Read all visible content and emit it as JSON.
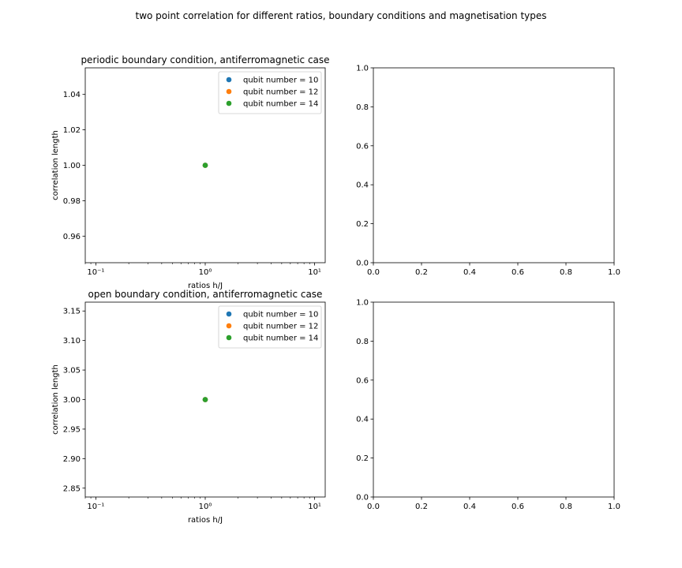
{
  "figure": {
    "suptitle": "two point correlation for different ratios, boundary conditions and magnetisation types"
  },
  "chart_data": [
    {
      "type": "scatter",
      "title": "periodic boundary condition, antiferromagnetic case",
      "xlabel": "ratios h/J",
      "ylabel": "correlation length",
      "xscale": "log",
      "xlim": [
        0.08,
        12.5
      ],
      "ylim": [
        0.945,
        1.055
      ],
      "xticks": [
        0.1,
        1,
        10
      ],
      "xtick_labels": [
        "10⁻¹",
        "10⁰",
        "10¹"
      ],
      "yticks": [
        0.96,
        0.98,
        1.0,
        1.02,
        1.04
      ],
      "ytick_labels": [
        "0.96",
        "0.98",
        "1.00",
        "1.02",
        "1.04"
      ],
      "grid": false,
      "legend": "upper right",
      "series": [
        {
          "name": "qubit number = 10",
          "color": "#1f77b4",
          "x": [
            1
          ],
          "y": [
            1.0
          ]
        },
        {
          "name": "qubit number = 12",
          "color": "#ff7f0e",
          "x": [
            1
          ],
          "y": [
            1.0
          ]
        },
        {
          "name": "qubit number = 14",
          "color": "#2ca02c",
          "x": [
            1
          ],
          "y": [
            1.0
          ]
        }
      ]
    },
    {
      "type": "scatter",
      "title": "",
      "xlabel": "",
      "ylabel": "",
      "xscale": "linear",
      "xlim": [
        0,
        1
      ],
      "ylim": [
        0,
        1
      ],
      "xticks": [
        0,
        0.2,
        0.4,
        0.6,
        0.8,
        1.0
      ],
      "xtick_labels": [
        "0.0",
        "0.2",
        "0.4",
        "0.6",
        "0.8",
        "1.0"
      ],
      "yticks": [
        0,
        0.2,
        0.4,
        0.6,
        0.8,
        1.0
      ],
      "ytick_labels": [
        "0.0",
        "0.2",
        "0.4",
        "0.6",
        "0.8",
        "1.0"
      ],
      "grid": false,
      "series": []
    },
    {
      "type": "scatter",
      "title": "open boundary condition, antiferromagnetic case",
      "xlabel": "ratios h/J",
      "ylabel": "correlation length",
      "xscale": "log",
      "xlim": [
        0.08,
        12.5
      ],
      "ylim": [
        2.835,
        3.165
      ],
      "xticks": [
        0.1,
        1,
        10
      ],
      "xtick_labels": [
        "10⁻¹",
        "10⁰",
        "10¹"
      ],
      "yticks": [
        2.85,
        2.9,
        2.95,
        3.0,
        3.05,
        3.1,
        3.15
      ],
      "ytick_labels": [
        "2.85",
        "2.90",
        "2.95",
        "3.00",
        "3.05",
        "3.10",
        "3.15"
      ],
      "grid": false,
      "legend": "upper right",
      "series": [
        {
          "name": "qubit number = 10",
          "color": "#1f77b4",
          "x": [
            1
          ],
          "y": [
            3.0
          ]
        },
        {
          "name": "qubit number = 12",
          "color": "#ff7f0e",
          "x": [
            1
          ],
          "y": [
            3.0
          ]
        },
        {
          "name": "qubit number = 14",
          "color": "#2ca02c",
          "x": [
            1
          ],
          "y": [
            3.0
          ]
        }
      ]
    },
    {
      "type": "scatter",
      "title": "",
      "xlabel": "",
      "ylabel": "",
      "xscale": "linear",
      "xlim": [
        0,
        1
      ],
      "ylim": [
        0,
        1
      ],
      "xticks": [
        0,
        0.2,
        0.4,
        0.6,
        0.8,
        1.0
      ],
      "xtick_labels": [
        "0.0",
        "0.2",
        "0.4",
        "0.6",
        "0.8",
        "1.0"
      ],
      "yticks": [
        0,
        0.2,
        0.4,
        0.6,
        0.8,
        1.0
      ],
      "ytick_labels": [
        "0.0",
        "0.2",
        "0.4",
        "0.6",
        "0.8",
        "1.0"
      ],
      "grid": false,
      "series": []
    }
  ]
}
